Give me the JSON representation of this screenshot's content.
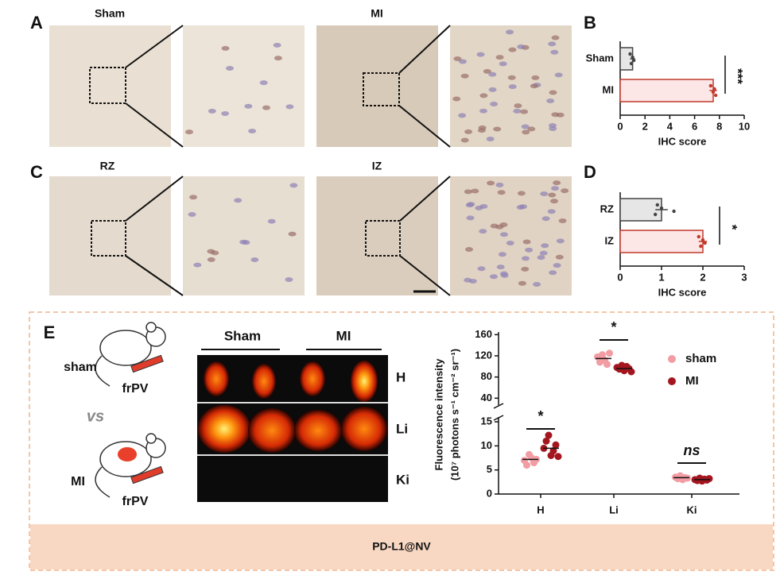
{
  "panel_labels": [
    "A",
    "B",
    "C",
    "D",
    "E"
  ],
  "micrograph_titles": [
    "Sham",
    "MI",
    "RZ",
    "IZ"
  ],
  "imaging": {
    "groups": [
      "Sham",
      "MI"
    ],
    "organs": [
      "H",
      "Li",
      "Ki"
    ],
    "left_labels": [
      "sham",
      "frPV",
      "vs",
      "MI",
      "frPV"
    ]
  },
  "footer": "PD-L1@NV",
  "chart_data": [
    {
      "type": "hbar",
      "categories": [
        "Sham",
        "MI"
      ],
      "values": [
        1,
        7.5
      ],
      "errors": [
        0.2,
        0.3
      ],
      "points": [
        [
          0.8,
          1.0,
          1.1,
          0.9
        ],
        [
          7.3,
          7.6,
          7.5,
          7.7
        ]
      ],
      "colors": [
        "#e6e6e6",
        "#fde6e6"
      ],
      "edge_colors": [
        "#444444",
        "#c0392b"
      ],
      "xlabel": "IHC score",
      "xlim": [
        0,
        10
      ],
      "xticks": [
        0,
        2,
        4,
        6,
        8,
        10
      ],
      "significance": "***"
    },
    {
      "type": "hbar",
      "categories": [
        "RZ",
        "IZ"
      ],
      "values": [
        1,
        2
      ],
      "errors": [
        0.15,
        0.1
      ],
      "points": [
        [
          0.9,
          1.0,
          1.3,
          0.85
        ],
        [
          1.9,
          2.0,
          2.05,
          1.95
        ]
      ],
      "colors": [
        "#e6e6e6",
        "#fde6e6"
      ],
      "edge_colors": [
        "#444444",
        "#c0392b"
      ],
      "xlabel": "IHC score",
      "xlim": [
        0,
        3
      ],
      "xticks": [
        0,
        1,
        2,
        3
      ],
      "significance": "*"
    },
    {
      "type": "scatter",
      "categories": [
        "H",
        "Li",
        "Ki"
      ],
      "ylabel": [
        "Fluorescence intensity",
        "(10⁷ photons s⁻¹ cm⁻² sr⁻¹)"
      ],
      "ylim": [
        0,
        16
      ],
      "yticks": [
        0,
        5,
        10,
        15
      ],
      "ylim_upper": [
        30,
        165
      ],
      "yticks_upper": [
        40,
        80,
        120,
        160
      ],
      "series": [
        {
          "name": "sham",
          "color": "#f29ca3",
          "values": [
            [
              7.0,
              6.0,
              8.2,
              7.5,
              6.5,
              7.2
            ],
            [
              118,
              108,
              122,
              112,
              104,
              125
            ],
            [
              3.5,
              3.2,
              3.8,
              3.0,
              3.4,
              3.3
            ]
          ],
          "means": [
            7.2,
            115,
            3.4
          ]
        },
        {
          "name": "MI",
          "color": "#a3161f",
          "values": [
            [
              9.5,
              11.0,
              12.2,
              8.0,
              9.0,
              10.2,
              7.8
            ],
            [
              98,
              95,
              102,
              92,
              100,
              96,
              90
            ],
            [
              3.0,
              2.8,
              3.3,
              2.7,
              3.1,
              2.9,
              3.2
            ]
          ],
          "means": [
            9.5,
            96,
            3.0
          ]
        }
      ],
      "significance": [
        "*",
        "*",
        "ns"
      ]
    }
  ]
}
